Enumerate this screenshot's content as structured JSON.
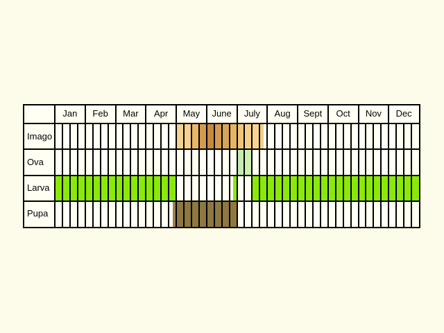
{
  "chart_data": {
    "type": "table",
    "months": [
      "Jan",
      "Feb",
      "Mar",
      "Apr",
      "May",
      "June",
      "July",
      "Aug",
      "Sept",
      "Oct",
      "Nov",
      "Dec"
    ],
    "stages": [
      "Imago",
      "Ova",
      "Larva",
      "Pupa"
    ],
    "quarter_columns_per_month": 4,
    "activity": {
      "Imago": [
        {
          "from_quarter": 16,
          "to_quarter": 18,
          "color": "#f5d190"
        },
        {
          "from_quarter": 18,
          "to_quarter": 19,
          "color": "#e9b66a"
        },
        {
          "from_quarter": 19,
          "to_quarter": 20,
          "color": "#d49a4f"
        },
        {
          "from_quarter": 20,
          "to_quarter": 21,
          "color": "#c8893b"
        },
        {
          "from_quarter": 21,
          "to_quarter": 22,
          "color": "#d59a4d"
        },
        {
          "from_quarter": 22,
          "to_quarter": 23,
          "color": "#d8a45a"
        },
        {
          "from_quarter": 23,
          "to_quarter": 24,
          "color": "#e3b565"
        },
        {
          "from_quarter": 24,
          "to_quarter": 25,
          "color": "#f0c676"
        },
        {
          "from_quarter": 25,
          "to_quarter": 26,
          "color": "#f5d08a"
        },
        {
          "from_quarter": 26,
          "to_quarter": 27,
          "color": "#f6d594"
        },
        {
          "from_quarter": 27,
          "to_quarter": 27.5,
          "color": "#f3cf8a"
        }
      ],
      "Ova": [
        {
          "from_quarter": 24,
          "to_quarter": 25,
          "color": "#c6eab0"
        },
        {
          "from_quarter": 25,
          "to_quarter": 26,
          "color": "#cdf0b0"
        }
      ],
      "Larva": [
        {
          "from_quarter": 0,
          "to_quarter": 16,
          "color": "#8ae908"
        },
        {
          "from_quarter": 23.5,
          "to_quarter": 24,
          "color": "#8ae908"
        },
        {
          "from_quarter": 26,
          "to_quarter": 48,
          "color": "#8ae908"
        }
      ],
      "Pupa": [
        {
          "from_quarter": 15.5,
          "to_quarter": 16,
          "color": "#9c8252"
        },
        {
          "from_quarter": 16,
          "to_quarter": 24,
          "color": "#8e7741"
        }
      ]
    }
  }
}
